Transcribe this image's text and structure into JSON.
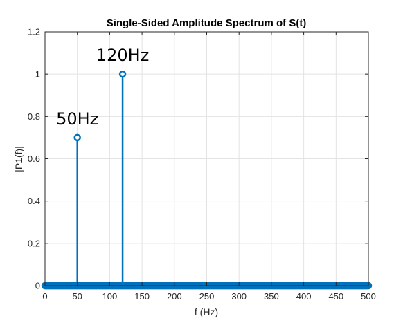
{
  "chart_data": {
    "type": "stem",
    "title": "Single-Sided Amplitude Spectrum of S(t)",
    "xlabel": "f (Hz)",
    "ylabel": "|P1(f)|",
    "xlim": [
      0,
      500
    ],
    "ylim": [
      0,
      1.2
    ],
    "xticks": [
      0,
      50,
      100,
      150,
      200,
      250,
      300,
      350,
      400,
      450,
      500
    ],
    "yticks": [
      0,
      0.2,
      0.4,
      0.6,
      0.8,
      1,
      1.2
    ],
    "xtick_labels": [
      "0",
      "50",
      "100",
      "150",
      "200",
      "250",
      "300",
      "350",
      "400",
      "450",
      "500"
    ],
    "ytick_labels": [
      "0",
      "0.2",
      "0.4",
      "0.6",
      "0.8",
      "1",
      "1.2"
    ],
    "grid": true,
    "baseline_stems": {
      "x_start": 0,
      "x_end": 500,
      "x_step": 1,
      "value": 0
    },
    "series": [
      {
        "x": [
          50,
          120
        ],
        "y": [
          0.7,
          1.0
        ]
      }
    ],
    "annotations": [
      {
        "text": "50Hz",
        "x": 50,
        "y": 0.7
      },
      {
        "text": "120Hz",
        "x": 120,
        "y": 1.0
      }
    ],
    "colors": {
      "series": "#0072BD",
      "grid": "#e3e3e3",
      "axis": "#262626",
      "background": "#ffffff"
    }
  }
}
